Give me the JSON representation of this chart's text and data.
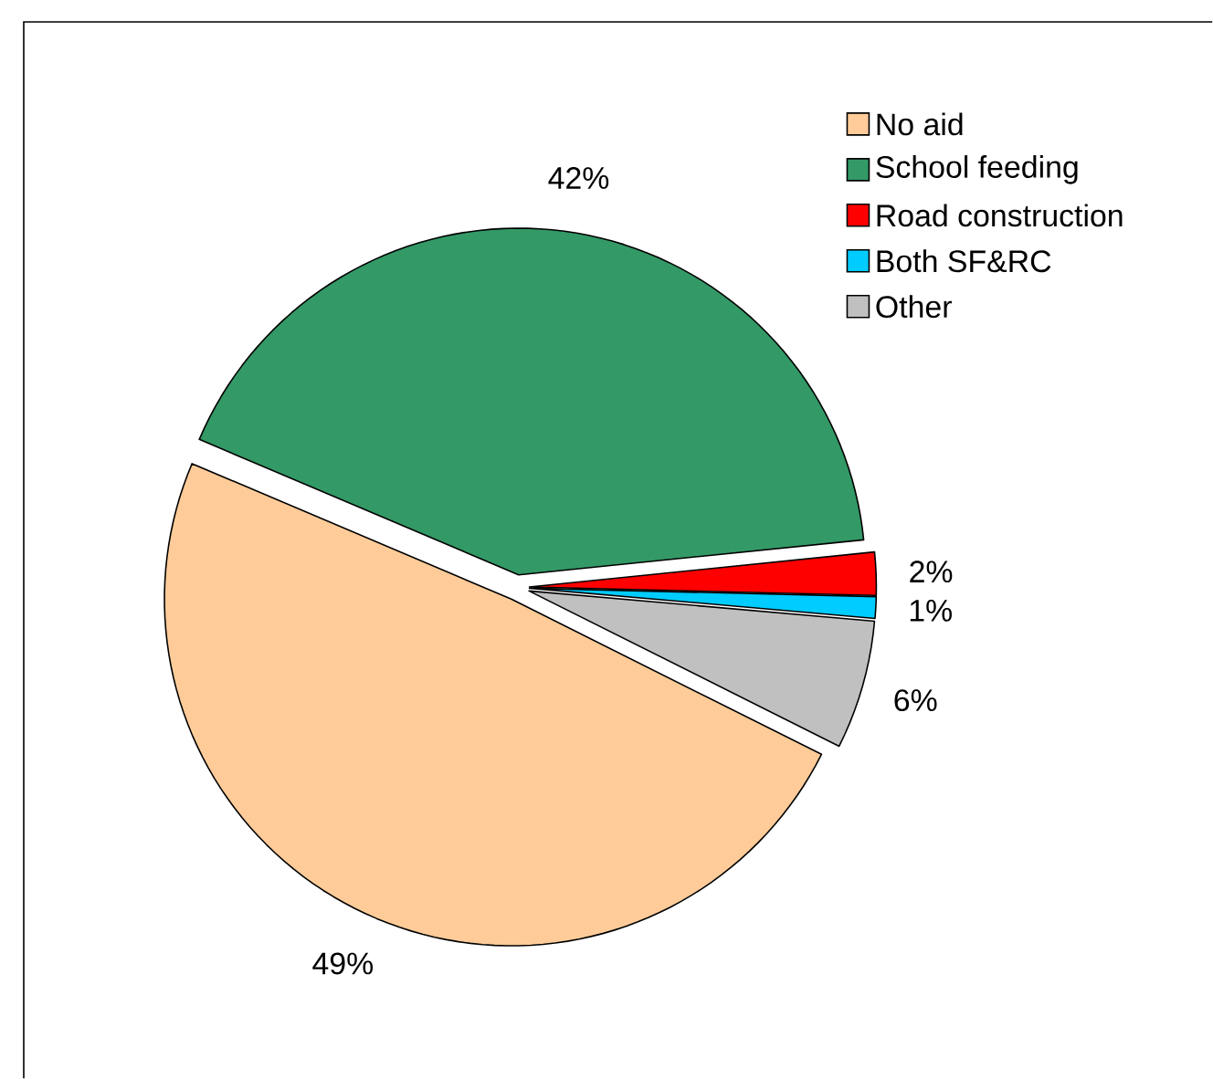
{
  "chart_data": {
    "type": "pie",
    "categories": [
      "No aid",
      "School feeding",
      "Road construction",
      "Both SF&RC",
      "Other"
    ],
    "values": [
      49,
      42,
      2,
      1,
      6
    ],
    "colors": [
      "#ffcc99",
      "#339966",
      "#ff0000",
      "#00ccff",
      "#c0c0c0"
    ],
    "value_labels": [
      "49%",
      "42%",
      "2%",
      "1%",
      "6%"
    ],
    "legend": "top right"
  }
}
